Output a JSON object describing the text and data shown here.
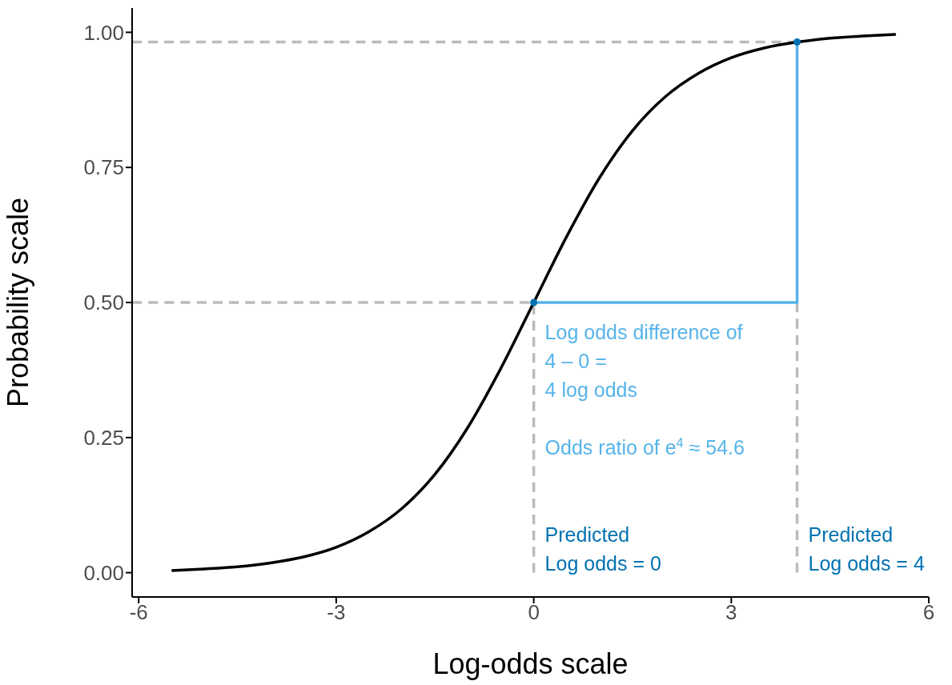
{
  "chart_data": {
    "type": "line",
    "xlabel": "Log-odds scale",
    "ylabel": "Probability scale",
    "xlim": [
      -6.1,
      6
    ],
    "xticks": [
      -6,
      -3,
      0,
      3,
      6
    ],
    "ylim": [
      -0.045,
      1.045
    ],
    "yticks": [
      {
        "value": 0,
        "label": "0.00"
      },
      {
        "value": 0.25,
        "label": "0.25"
      },
      {
        "value": 0.5,
        "label": "0.50"
      },
      {
        "value": 0.75,
        "label": "0.75"
      },
      {
        "value": 1,
        "label": "1.00"
      }
    ],
    "series": [
      {
        "color": "#bbbbbb",
        "line_style": "dashed",
        "x": [
          -6.1,
          0,
          0
        ],
        "values": [
          0.5,
          0.5,
          0
        ]
      },
      {
        "color": "#bbbbbb",
        "line_style": "dashed",
        "x": [
          -6.1,
          4
        ],
        "values": [
          0.982,
          0.982
        ]
      },
      {
        "color": "#bbbbbb",
        "line_style": "dashed",
        "x": [
          4,
          4
        ],
        "values": [
          0.5,
          0
        ]
      },
      {
        "color": "#000000",
        "line_style": "solid",
        "x": [
          -5.5,
          -5,
          -4.5,
          -4,
          -3.5,
          -3,
          -2.5,
          -2,
          -1.5,
          -1,
          -0.5,
          0,
          0.5,
          1,
          1.5,
          2,
          2.5,
          3,
          3.5,
          4,
          4.5,
          5,
          5.5
        ],
        "values": [
          0.004,
          0.007,
          0.011,
          0.018,
          0.029,
          0.047,
          0.076,
          0.119,
          0.182,
          0.269,
          0.378,
          0.5,
          0.622,
          0.731,
          0.818,
          0.881,
          0.924,
          0.953,
          0.971,
          0.982,
          0.989,
          0.993,
          0.996
        ]
      },
      {
        "color": "#56b4e9",
        "line_style": "solid",
        "x": [
          0,
          4,
          4
        ],
        "values": [
          0.5,
          0.5,
          0.982
        ]
      },
      {
        "type": "scatter",
        "color": "#0072b2",
        "marker": "circle",
        "x": [
          0,
          4
        ],
        "values": [
          0.5,
          0.982
        ]
      }
    ],
    "annotations": [
      "Log odds difference of\n4 – 0 =\n4 log odds",
      "Odds ratio of e$^{4}$ ≈ 54.6",
      "Predicted\nLog odds = 0",
      "Predicted\nLog odds = 4"
    ]
  }
}
